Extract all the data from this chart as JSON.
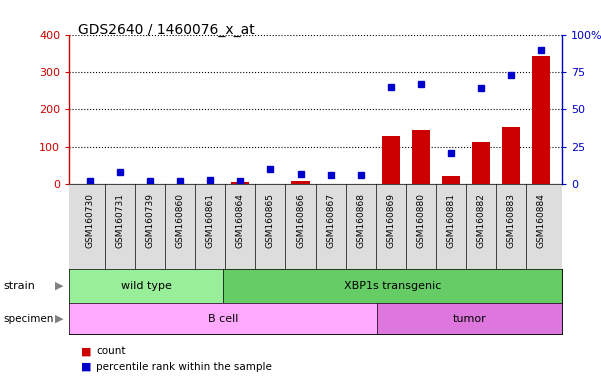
{
  "title": "GDS2640 / 1460076_x_at",
  "samples": [
    "GSM160730",
    "GSM160731",
    "GSM160739",
    "GSM160860",
    "GSM160861",
    "GSM160864",
    "GSM160865",
    "GSM160866",
    "GSM160867",
    "GSM160868",
    "GSM160869",
    "GSM160880",
    "GSM160881",
    "GSM160882",
    "GSM160883",
    "GSM160884"
  ],
  "counts": [
    2,
    -5,
    2,
    2,
    2,
    5,
    2,
    8,
    -3,
    -3,
    128,
    145,
    22,
    112,
    152,
    342
  ],
  "percentiles": [
    2,
    8,
    2,
    2,
    3,
    2,
    10,
    7,
    6,
    6,
    65,
    67,
    21,
    64,
    73,
    90
  ],
  "strain_groups": [
    {
      "label": "wild type",
      "start": 0,
      "end": 4,
      "color": "#99ee99"
    },
    {
      "label": "XBP1s transgenic",
      "start": 5,
      "end": 15,
      "color": "#66cc66"
    }
  ],
  "specimen_groups": [
    {
      "label": "B cell",
      "start": 0,
      "end": 9,
      "color": "#ffaaff"
    },
    {
      "label": "tumor",
      "start": 10,
      "end": 15,
      "color": "#dd77dd"
    }
  ],
  "bar_color": "#cc0000",
  "dot_color": "#0000cc",
  "left_axis_color": "#cc0000",
  "right_axis_color": "#0000cc",
  "ylim_left": [
    0,
    400
  ],
  "ylim_right": [
    0,
    100
  ],
  "left_ticks": [
    0,
    100,
    200,
    300,
    400
  ],
  "right_tick_labels": [
    "0",
    "25",
    "50",
    "75",
    "100%"
  ],
  "background_color": "#ffffff",
  "plot_bg": "#ffffff",
  "grid_color": "#000000",
  "xtick_bg": "#dddddd",
  "n_samples": 16
}
